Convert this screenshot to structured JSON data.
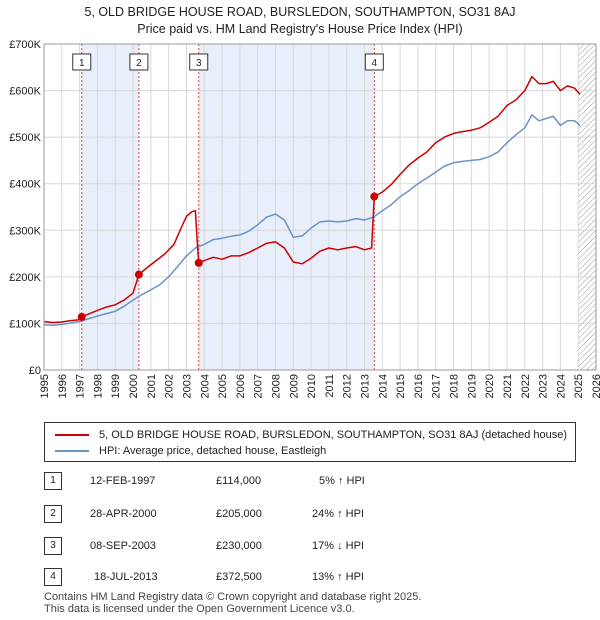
{
  "title_line1": "5, OLD BRIDGE HOUSE ROAD, BURSLEDON, SOUTHAMPTON, SO31 8AJ",
  "title_line2": "Price paid vs. HM Land Registry's House Price Index (HPI)",
  "chart_data": {
    "type": "line",
    "xlim": [
      1995,
      2026
    ],
    "ylim": [
      0,
      700000
    ],
    "x_ticks": [
      "1995",
      "1996",
      "1997",
      "1998",
      "1999",
      "2000",
      "2001",
      "2002",
      "2003",
      "2004",
      "2005",
      "2006",
      "2007",
      "2008",
      "2009",
      "2010",
      "2011",
      "2012",
      "2013",
      "2014",
      "2015",
      "2016",
      "2017",
      "2018",
      "2019",
      "2020",
      "2021",
      "2022",
      "2023",
      "2024",
      "2025",
      "2026"
    ],
    "y_ticks": [
      {
        "value": 0,
        "label": "£0"
      },
      {
        "value": 100000,
        "label": "£100K"
      },
      {
        "value": 200000,
        "label": "£200K"
      },
      {
        "value": 300000,
        "label": "£300K"
      },
      {
        "value": 400000,
        "label": "£400K"
      },
      {
        "value": 500000,
        "label": "£500K"
      },
      {
        "value": 600000,
        "label": "£600K"
      },
      {
        "value": 700000,
        "label": "£700K"
      }
    ],
    "grid": true,
    "colors": {
      "price": "#cc0000",
      "hpi": "#6a93c8",
      "shade": "#e8eefa",
      "marker_line": "#dd4444",
      "hatch": "#999999"
    },
    "shaded_ranges": [
      [
        1997.12,
        2000.33
      ],
      [
        2003.69,
        2013.55
      ]
    ],
    "hatch_from": 2025.0,
    "series": [
      {
        "name": "5, OLD BRIDGE HOUSE ROAD, BURSLEDON, SOUTHAMPTON, SO31 8AJ (detached house)",
        "color": "#cc0000",
        "points": [
          [
            1995.0,
            104000
          ],
          [
            1995.5,
            102000
          ],
          [
            1996.0,
            103000
          ],
          [
            1996.5,
            106000
          ],
          [
            1997.0,
            108000
          ],
          [
            1997.12,
            114000
          ],
          [
            1997.5,
            120000
          ],
          [
            1998.0,
            128000
          ],
          [
            1998.5,
            135000
          ],
          [
            1999.0,
            140000
          ],
          [
            1999.5,
            150000
          ],
          [
            2000.0,
            165000
          ],
          [
            2000.33,
            205000
          ],
          [
            2000.8,
            220000
          ],
          [
            2001.3,
            235000
          ],
          [
            2001.8,
            250000
          ],
          [
            2002.3,
            270000
          ],
          [
            2002.7,
            305000
          ],
          [
            2003.0,
            330000
          ],
          [
            2003.3,
            340000
          ],
          [
            2003.5,
            342000
          ],
          [
            2003.6,
            280000
          ],
          [
            2003.69,
            230000
          ],
          [
            2004.0,
            235000
          ],
          [
            2004.5,
            242000
          ],
          [
            2005.0,
            238000
          ],
          [
            2005.5,
            245000
          ],
          [
            2006.0,
            245000
          ],
          [
            2006.5,
            252000
          ],
          [
            2007.0,
            262000
          ],
          [
            2007.5,
            272000
          ],
          [
            2008.0,
            275000
          ],
          [
            2008.5,
            262000
          ],
          [
            2009.0,
            232000
          ],
          [
            2009.5,
            228000
          ],
          [
            2010.0,
            240000
          ],
          [
            2010.5,
            255000
          ],
          [
            2011.0,
            262000
          ],
          [
            2011.5,
            258000
          ],
          [
            2012.0,
            262000
          ],
          [
            2012.5,
            265000
          ],
          [
            2013.0,
            258000
          ],
          [
            2013.4,
            262000
          ],
          [
            2013.55,
            372500
          ],
          [
            2014.0,
            382000
          ],
          [
            2014.5,
            398000
          ],
          [
            2015.0,
            420000
          ],
          [
            2015.5,
            440000
          ],
          [
            2016.0,
            455000
          ],
          [
            2016.5,
            468000
          ],
          [
            2017.0,
            488000
          ],
          [
            2017.5,
            500000
          ],
          [
            2018.0,
            508000
          ],
          [
            2018.5,
            512000
          ],
          [
            2019.0,
            515000
          ],
          [
            2019.5,
            520000
          ],
          [
            2020.0,
            532000
          ],
          [
            2020.5,
            545000
          ],
          [
            2021.0,
            568000
          ],
          [
            2021.5,
            580000
          ],
          [
            2022.0,
            600000
          ],
          [
            2022.4,
            630000
          ],
          [
            2022.8,
            615000
          ],
          [
            2023.2,
            615000
          ],
          [
            2023.6,
            620000
          ],
          [
            2024.0,
            600000
          ],
          [
            2024.4,
            610000
          ],
          [
            2024.8,
            605000
          ],
          [
            2025.1,
            592000
          ]
        ]
      },
      {
        "name": "HPI: Average price, detached house, Eastleigh",
        "color": "#6a93c8",
        "points": [
          [
            1995.0,
            97000
          ],
          [
            1995.5,
            96000
          ],
          [
            1996.0,
            98000
          ],
          [
            1996.5,
            101000
          ],
          [
            1997.0,
            104000
          ],
          [
            1997.5,
            110000
          ],
          [
            1998.0,
            116000
          ],
          [
            1998.5,
            121000
          ],
          [
            1999.0,
            126000
          ],
          [
            1999.5,
            137000
          ],
          [
            2000.0,
            150000
          ],
          [
            2000.5,
            162000
          ],
          [
            2001.0,
            172000
          ],
          [
            2001.5,
            183000
          ],
          [
            2002.0,
            200000
          ],
          [
            2002.5,
            222000
          ],
          [
            2003.0,
            245000
          ],
          [
            2003.5,
            262000
          ],
          [
            2004.0,
            270000
          ],
          [
            2004.5,
            280000
          ],
          [
            2005.0,
            283000
          ],
          [
            2005.5,
            287000
          ],
          [
            2006.0,
            290000
          ],
          [
            2006.5,
            298000
          ],
          [
            2007.0,
            312000
          ],
          [
            2007.5,
            328000
          ],
          [
            2008.0,
            335000
          ],
          [
            2008.5,
            322000
          ],
          [
            2009.0,
            285000
          ],
          [
            2009.5,
            288000
          ],
          [
            2010.0,
            305000
          ],
          [
            2010.5,
            318000
          ],
          [
            2011.0,
            320000
          ],
          [
            2011.5,
            318000
          ],
          [
            2012.0,
            320000
          ],
          [
            2012.5,
            325000
          ],
          [
            2013.0,
            322000
          ],
          [
            2013.5,
            328000
          ],
          [
            2014.0,
            342000
          ],
          [
            2014.5,
            355000
          ],
          [
            2015.0,
            372000
          ],
          [
            2015.5,
            385000
          ],
          [
            2016.0,
            400000
          ],
          [
            2016.5,
            412000
          ],
          [
            2017.0,
            425000
          ],
          [
            2017.5,
            438000
          ],
          [
            2018.0,
            445000
          ],
          [
            2018.5,
            448000
          ],
          [
            2019.0,
            450000
          ],
          [
            2019.5,
            452000
          ],
          [
            2020.0,
            458000
          ],
          [
            2020.5,
            468000
          ],
          [
            2021.0,
            488000
          ],
          [
            2021.5,
            505000
          ],
          [
            2022.0,
            520000
          ],
          [
            2022.4,
            548000
          ],
          [
            2022.8,
            535000
          ],
          [
            2023.2,
            540000
          ],
          [
            2023.6,
            545000
          ],
          [
            2024.0,
            525000
          ],
          [
            2024.4,
            535000
          ],
          [
            2024.8,
            535000
          ],
          [
            2025.1,
            525000
          ]
        ]
      }
    ],
    "sale_markers": [
      {
        "label": "1",
        "x": 1997.12,
        "y": 114000
      },
      {
        "label": "2",
        "x": 2000.33,
        "y": 205000
      },
      {
        "label": "3",
        "x": 2003.69,
        "y": 230000
      },
      {
        "label": "4",
        "x": 2013.55,
        "y": 372500
      }
    ]
  },
  "legend": {
    "price_label": "5, OLD BRIDGE HOUSE ROAD, BURSLEDON, SOUTHAMPTON, SO31 8AJ (detached house)",
    "hpi_label": "HPI: Average price, detached house, Eastleigh"
  },
  "sales": [
    {
      "num": "1",
      "date": "12-FEB-1997",
      "price": "£114,000",
      "hpi": "5% ↑ HPI"
    },
    {
      "num": "2",
      "date": "28-APR-2000",
      "price": "£205,000",
      "hpi": "24% ↑ HPI"
    },
    {
      "num": "3",
      "date": "08-SEP-2003",
      "price": "£230,000",
      "hpi": "17% ↓ HPI"
    },
    {
      "num": "4",
      "date": "18-JUL-2013",
      "price": "£372,500",
      "hpi": "13% ↑ HPI"
    }
  ],
  "footer_line1": "Contains HM Land Registry data © Crown copyright and database right 2025.",
  "footer_line2": "This data is licensed under the Open Government Licence v3.0."
}
